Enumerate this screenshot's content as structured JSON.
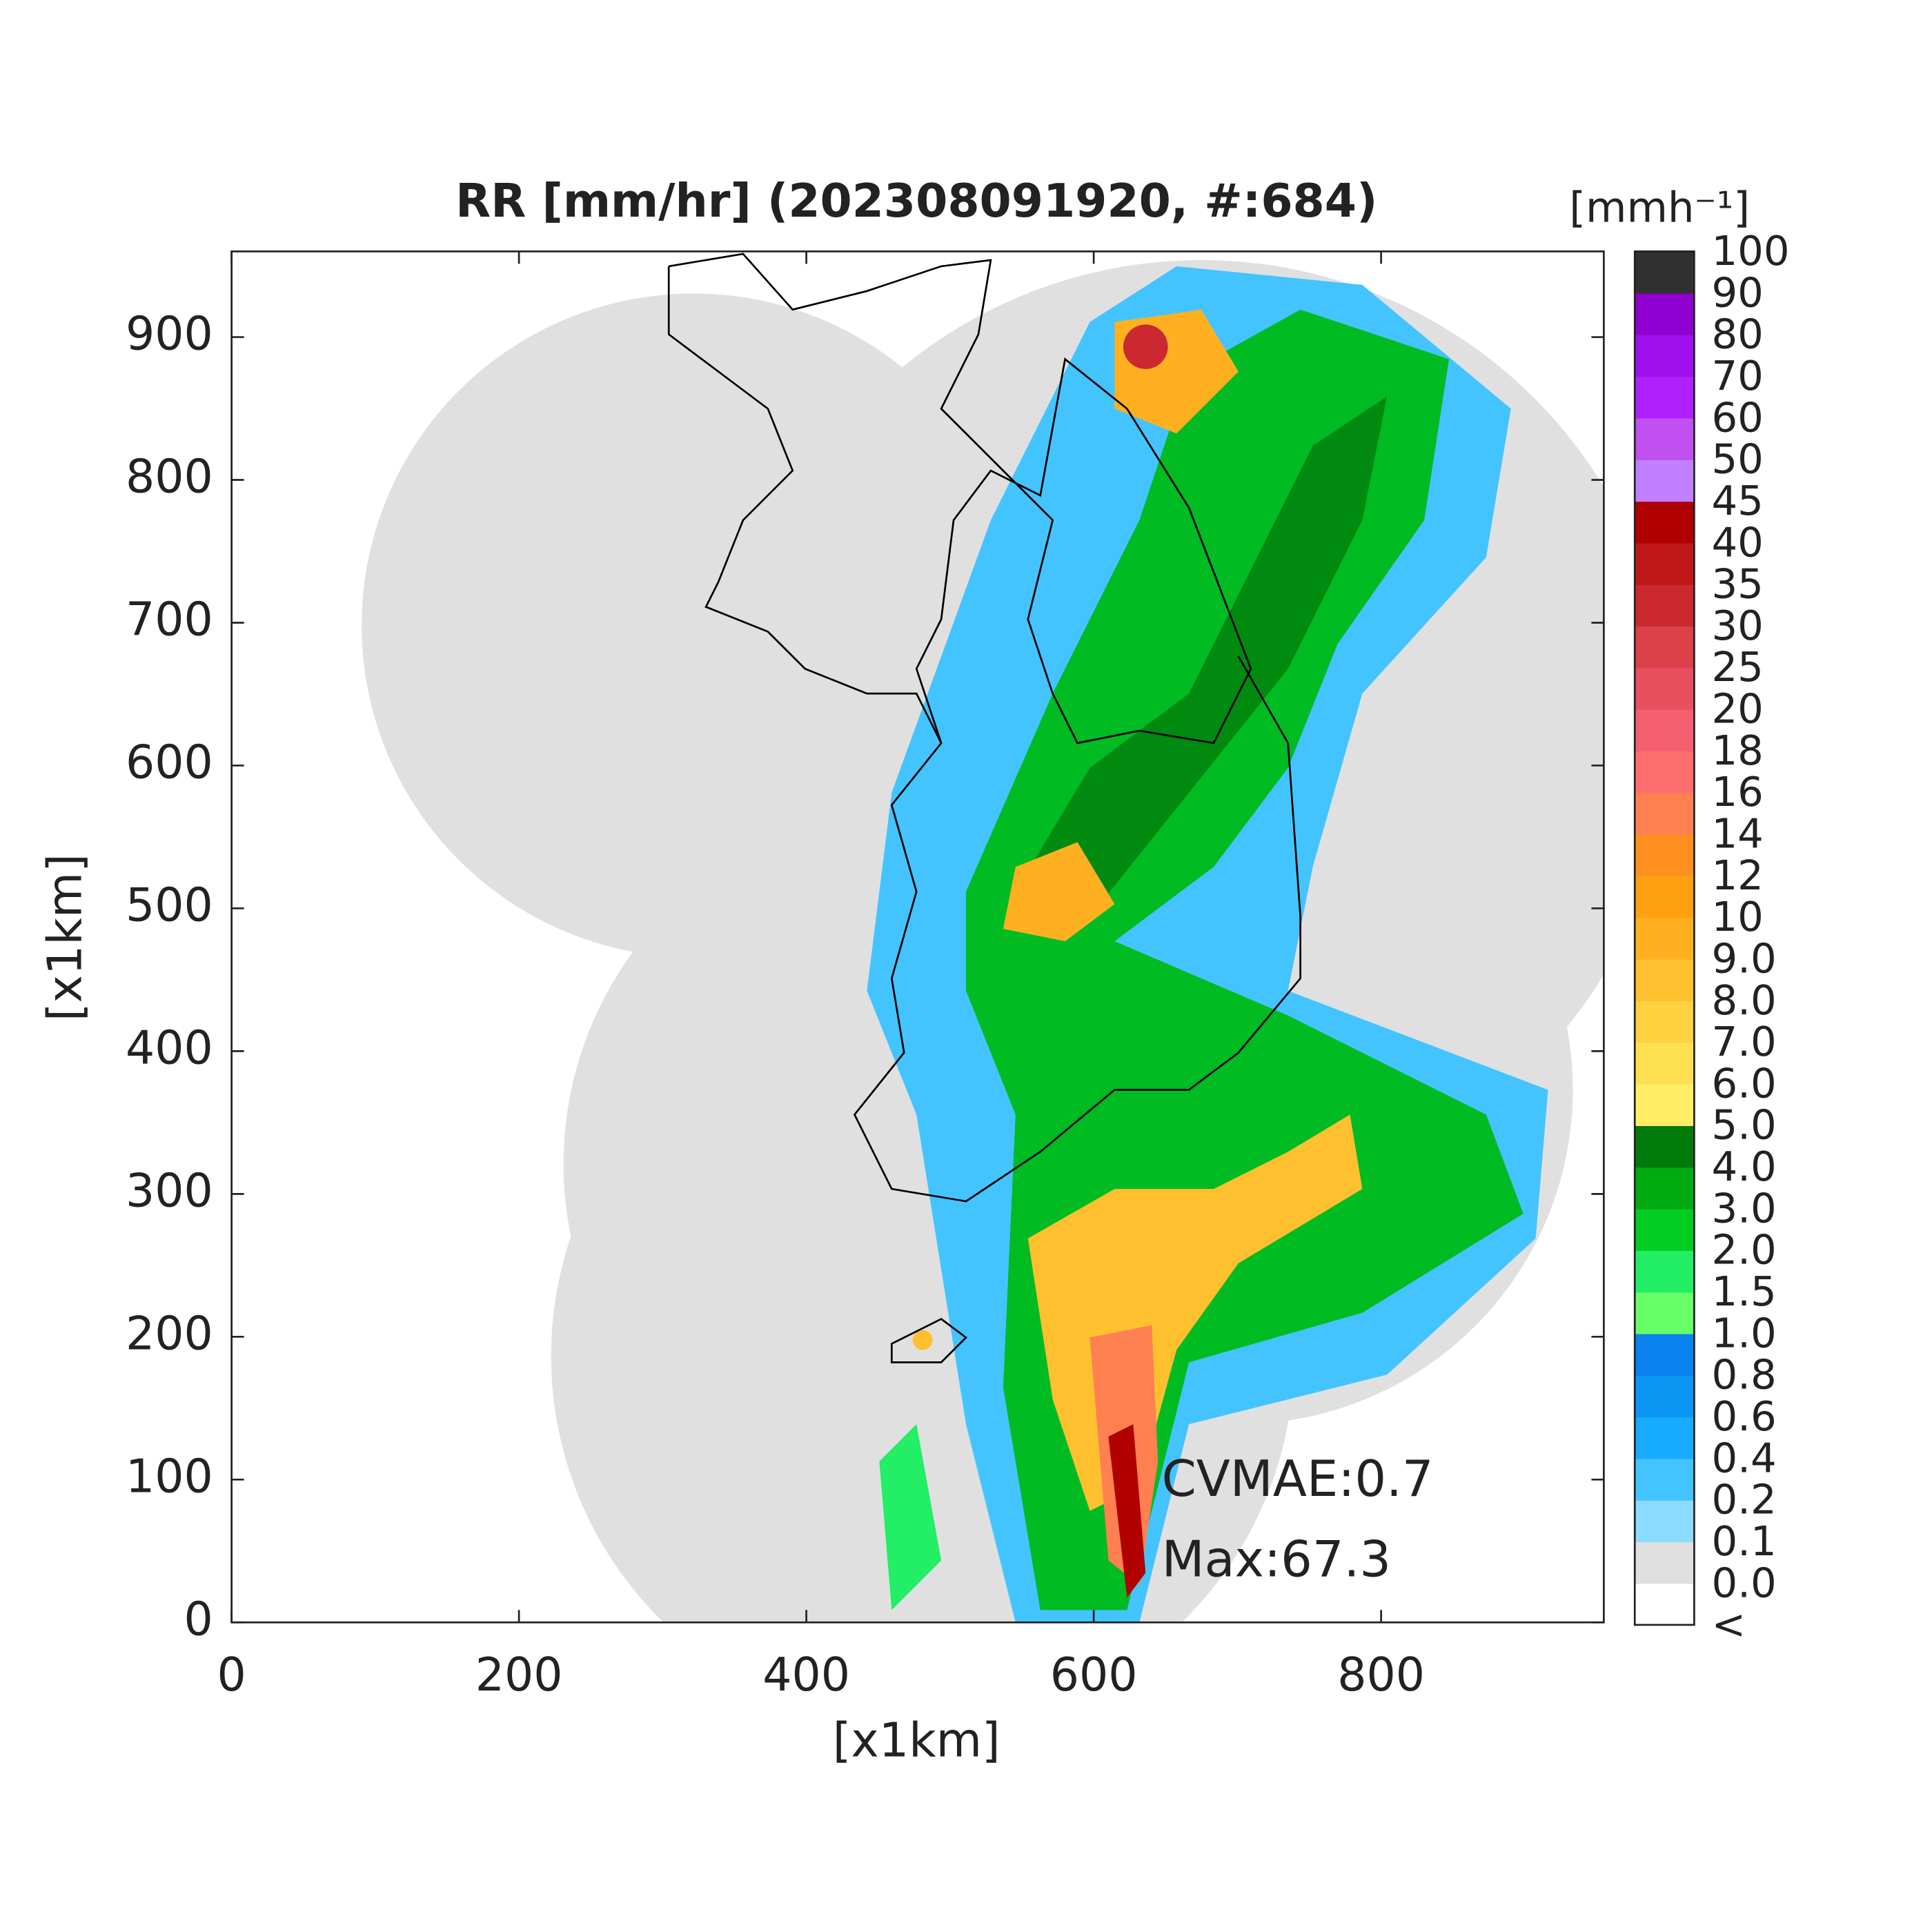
{
  "chart_data": {
    "type": "map",
    "title": "RR [mm/hr] (202308091920, #:684)",
    "xlabel": "[x1km]",
    "ylabel": "[x1km]",
    "xlim": [
      0,
      955
    ],
    "ylim": [
      0,
      960
    ],
    "xticks": [
      0,
      200,
      400,
      600,
      800
    ],
    "yticks": [
      0,
      100,
      200,
      300,
      400,
      500,
      600,
      700,
      800,
      900
    ],
    "annotations": [
      "CVMAE:0.7",
      "Max:67.3"
    ],
    "colorbar": {
      "title": "[mmh⁻¹]",
      "labels": [
        "<",
        "0.0",
        "0.1",
        "0.2",
        "0.4",
        "0.6",
        "0.8",
        "1.0",
        "1.5",
        "2.0",
        "3.0",
        "4.0",
        "5.0",
        "6.0",
        "7.0",
        "8.0",
        "9.0",
        "10",
        "12",
        "14",
        "16",
        "18",
        "20",
        "25",
        "30",
        "35",
        "40",
        "45",
        "50",
        "60",
        "70",
        "80",
        "90",
        "100"
      ],
      "colors": [
        "#ffffff",
        "#e0e0e0",
        "#8cdcff",
        "#44c4ff",
        "#18aaff",
        "#0c96f4",
        "#0a82f0",
        "#66ff66",
        "#22ee66",
        "#00cc22",
        "#00aa11",
        "#007a0a",
        "#ffee66",
        "#ffe050",
        "#ffd040",
        "#ffc030",
        "#ffb020",
        "#ffa010",
        "#ff9020",
        "#ff8050",
        "#ff6e6e",
        "#f46070",
        "#e85060",
        "#dc4048",
        "#cc2830",
        "#c01818",
        "#b00000",
        "#c080ff",
        "#c050f0",
        "#b020ff",
        "#a010ee",
        "#9000d0",
        "#303030"
      ]
    }
  }
}
